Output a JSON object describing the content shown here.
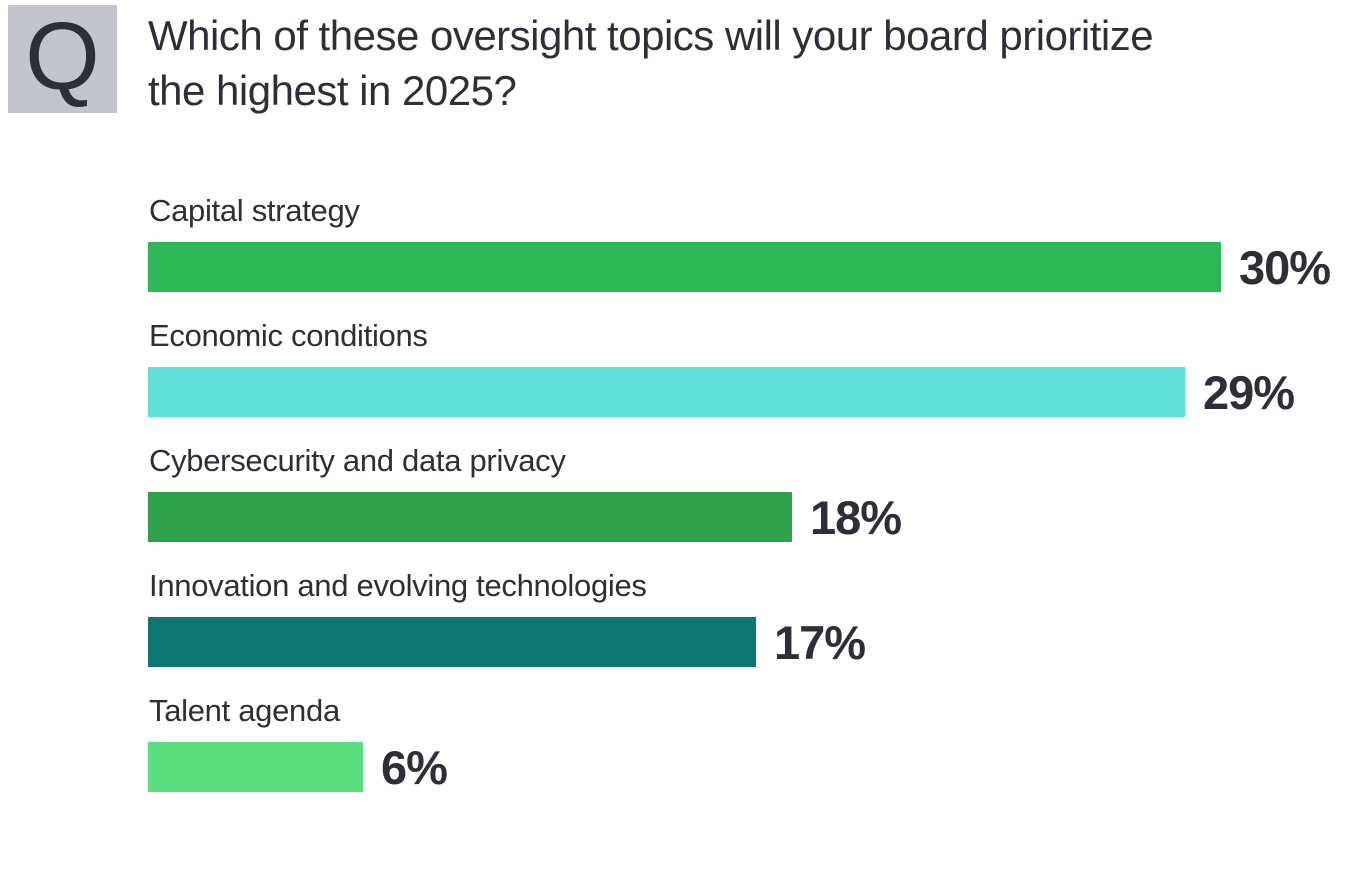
{
  "question_badge": "Q",
  "title": "Which of these oversight topics will your board prioritize the highest in 2025?",
  "colors": {
    "background": "#ffffff",
    "text": "#2e2e38",
    "badge_background": "#c4c4cd"
  },
  "chart_data": {
    "type": "bar",
    "orientation": "horizontal",
    "title": "Which of these oversight topics will your board prioritize the highest in 2025?",
    "categories": [
      "Capital strategy",
      "Economic conditions",
      "Cybersecurity and data privacy",
      "Innovation and evolving technologies",
      "Talent agenda"
    ],
    "values": [
      30,
      29,
      18,
      17,
      6
    ],
    "value_labels": [
      "30%",
      "29%",
      "18%",
      "17%",
      "6%"
    ],
    "bar_colors": [
      "#2db757",
      "#60e1da",
      "#2fa14d",
      "#0d7671",
      "#5bde80"
    ],
    "unit": "%",
    "xlim": [
      0,
      30
    ],
    "grid": false,
    "legend": false,
    "value_label_position": "end-of-bar",
    "category_label_position": "above-bar"
  }
}
